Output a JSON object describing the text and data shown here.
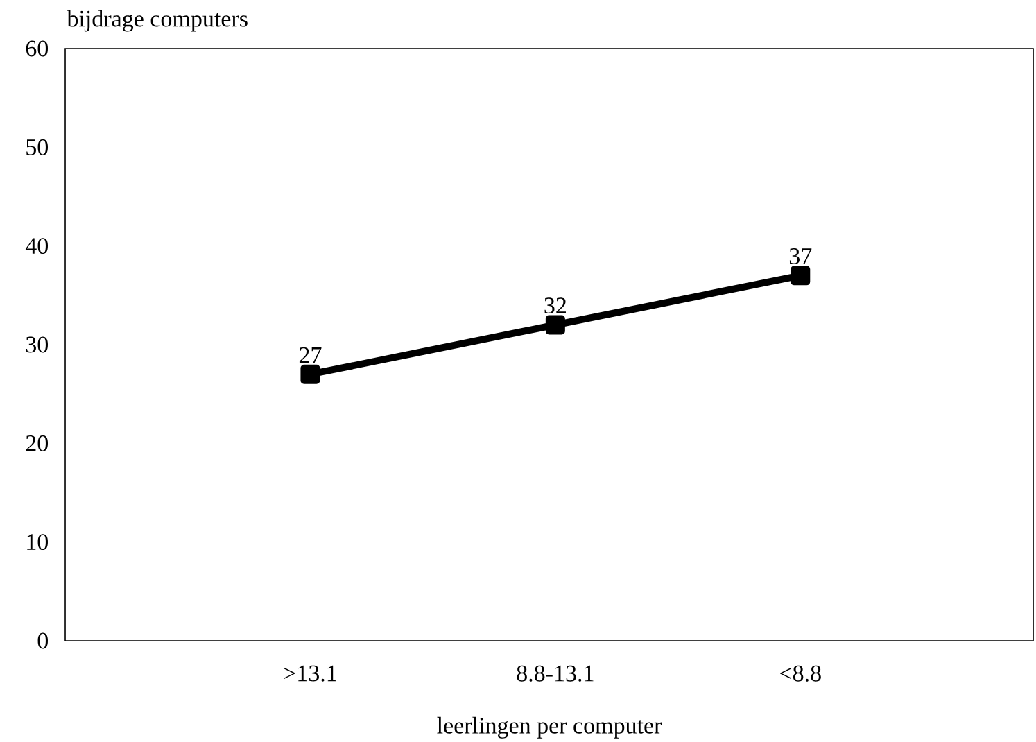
{
  "chart_data": {
    "type": "line",
    "xlabel": "leerlingen per computer",
    "ylabel": "bijdrage computers",
    "categories": [
      ">13.1",
      "8.8-13.1",
      "<8.8"
    ],
    "series": [
      {
        "color": "#000000",
        "values": [
          27,
          32,
          37
        ]
      }
    ],
    "ylim": [
      0,
      60
    ],
    "yticks": [
      0,
      10,
      20,
      30,
      40,
      50,
      60
    ],
    "data_labels": true,
    "marker": "square",
    "line_style": "solid",
    "grid": false
  }
}
